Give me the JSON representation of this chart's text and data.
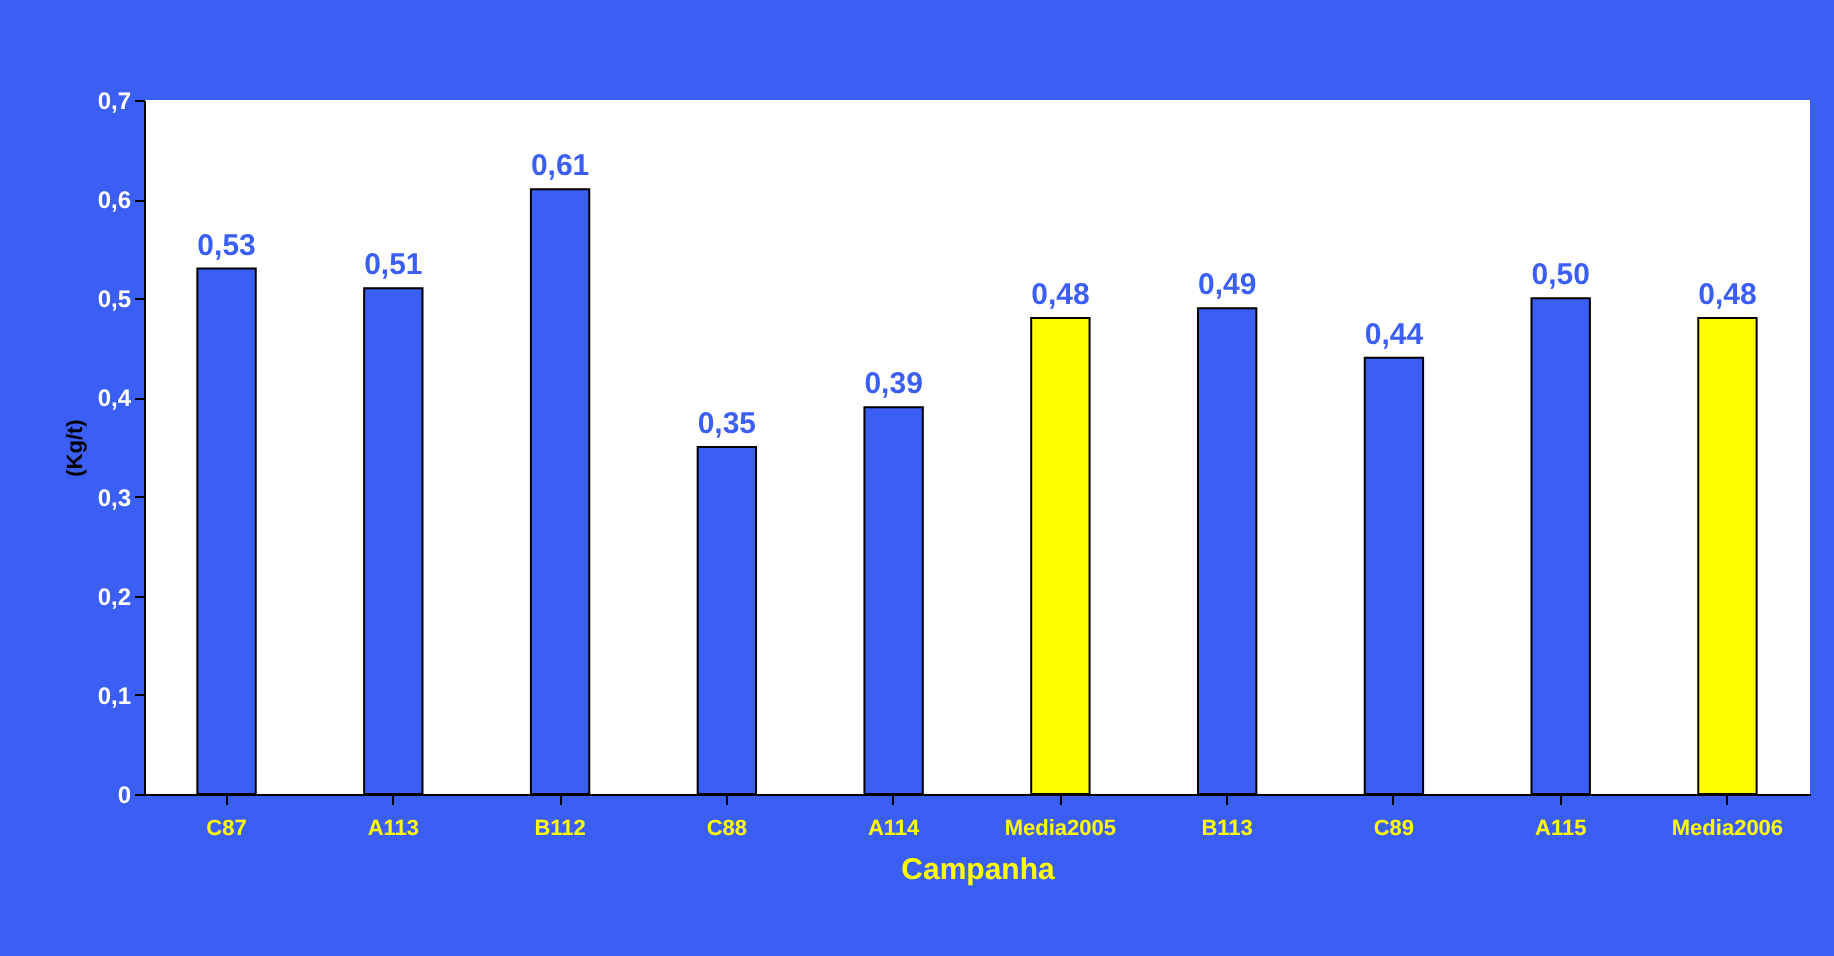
{
  "chart_data": {
    "type": "bar",
    "xlabel": "Campanha",
    "ylabel": "(Kg/t)",
    "categories": [
      "C87",
      "A113",
      "B112",
      "C88",
      "A114",
      "Media2005",
      "B113",
      "C89",
      "A115",
      "Media2006"
    ],
    "values": [
      0.53,
      0.51,
      0.61,
      0.35,
      0.39,
      0.48,
      0.49,
      0.44,
      0.5,
      0.48
    ],
    "colors": [
      "#3b5ef5",
      "#3b5ef5",
      "#3b5ef5",
      "#3b5ef5",
      "#3b5ef5",
      "#ffff00",
      "#3b5ef5",
      "#3b5ef5",
      "#3b5ef5",
      "#ffff00"
    ],
    "value_labels": [
      "0,53",
      "0,51",
      "0,61",
      "0,35",
      "0,39",
      "0,48",
      "0,49",
      "0,44",
      "0,50",
      "0,48"
    ],
    "ylim": [
      0,
      0.7
    ],
    "yticks": [
      0,
      {
        "value": 0.1,
        "label": "0,1"
      },
      {
        "value": 0.2,
        "label": "0,2"
      },
      {
        "value": 0.3,
        "label": "0,3"
      },
      {
        "value": 0.4,
        "label": "0,4"
      },
      {
        "value": 0.5,
        "label": "0,5"
      },
      {
        "value": 0.6,
        "label": "0,6"
      },
      {
        "value": 0.7,
        "label": "0,7"
      }
    ],
    "grid": false
  }
}
